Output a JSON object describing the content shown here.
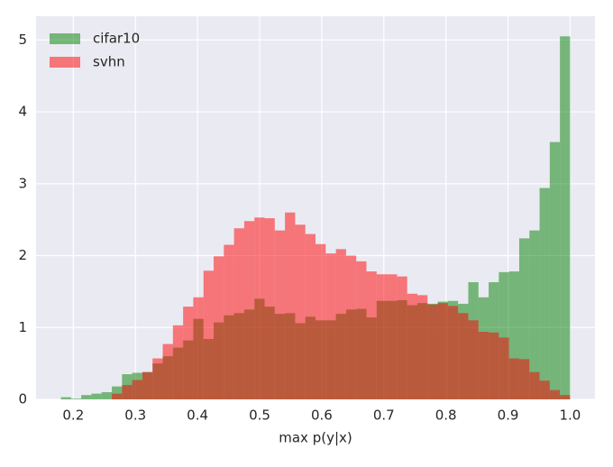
{
  "chart_data": {
    "type": "histogram",
    "xlabel": "max p(y|x)",
    "bins": [
      0.18,
      0.1964,
      0.2128,
      0.2292,
      0.2456,
      0.262,
      0.2784,
      0.2948,
      0.3112,
      0.3276,
      0.344,
      0.3604,
      0.3768,
      0.3932,
      0.4096,
      0.426,
      0.4424,
      0.4588,
      0.4752,
      0.4916,
      0.508,
      0.5244,
      0.5408,
      0.5572,
      0.5736,
      0.59,
      0.6064,
      0.6228,
      0.6392,
      0.6556,
      0.672,
      0.6884,
      0.7048,
      0.7212,
      0.7376,
      0.754,
      0.7704,
      0.7868,
      0.8032,
      0.8196,
      0.836,
      0.8524,
      0.8688,
      0.8852,
      0.9016,
      0.918,
      0.9344,
      0.9508,
      0.9672,
      0.9836,
      1.0
    ],
    "series": [
      {
        "name": "cifar10",
        "color": "#008000",
        "values": [
          0.03,
          0.01,
          0.06,
          0.08,
          0.1,
          0.18,
          0.35,
          0.37,
          0.38,
          0.5,
          0.6,
          0.72,
          0.82,
          1.12,
          0.84,
          1.07,
          1.17,
          1.2,
          1.25,
          1.4,
          1.29,
          1.19,
          1.2,
          1.06,
          1.15,
          1.1,
          1.1,
          1.19,
          1.25,
          1.26,
          1.14,
          1.37,
          1.37,
          1.38,
          1.31,
          1.34,
          1.33,
          1.36,
          1.37,
          1.33,
          1.63,
          1.42,
          1.63,
          1.77,
          1.78,
          2.24,
          2.35,
          2.94,
          3.58,
          5.05
        ]
      },
      {
        "name": "svhn",
        "color": "#ff0000",
        "values": [
          0,
          0,
          0,
          0,
          0,
          0.08,
          0.2,
          0.27,
          0.38,
          0.57,
          0.77,
          1.03,
          1.29,
          1.42,
          1.79,
          1.99,
          2.15,
          2.38,
          2.48,
          2.53,
          2.52,
          2.35,
          2.6,
          2.43,
          2.3,
          2.16,
          2.03,
          2.09,
          2.0,
          1.92,
          1.78,
          1.74,
          1.74,
          1.71,
          1.47,
          1.45,
          1.32,
          1.34,
          1.3,
          1.2,
          1.1,
          0.94,
          0.93,
          0.86,
          0.57,
          0.56,
          0.38,
          0.26,
          0.13,
          0.06
        ]
      }
    ],
    "opacity": 0.5,
    "xlim": [
      0.14,
      1.04
    ],
    "ylim": [
      0,
      5.33
    ],
    "xticks": [
      0.2,
      0.3,
      0.4,
      0.5,
      0.6,
      0.7,
      0.8,
      0.9,
      {
        "value": 1,
        "label": "1.0"
      }
    ],
    "yticks": [
      0,
      1,
      2,
      3,
      4,
      5
    ],
    "grid": true,
    "legend": "upper-left"
  }
}
